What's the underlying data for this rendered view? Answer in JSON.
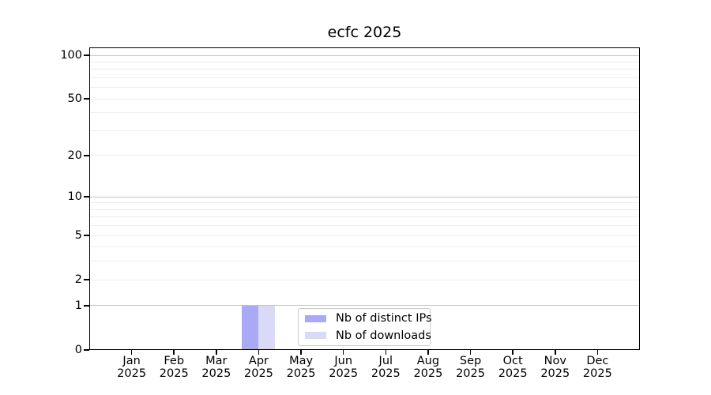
{
  "page": {
    "background": "#ffffff"
  },
  "chart_data": {
    "type": "bar",
    "title": "ecfc 2025",
    "x": {
      "categories": [
        {
          "month": "Jan",
          "year": "2025"
        },
        {
          "month": "Feb",
          "year": "2025"
        },
        {
          "month": "Mar",
          "year": "2025"
        },
        {
          "month": "Apr",
          "year": "2025"
        },
        {
          "month": "May",
          "year": "2025"
        },
        {
          "month": "Jun",
          "year": "2025"
        },
        {
          "month": "Jul",
          "year": "2025"
        },
        {
          "month": "Aug",
          "year": "2025"
        },
        {
          "month": "Sep",
          "year": "2025"
        },
        {
          "month": "Oct",
          "year": "2025"
        },
        {
          "month": "Nov",
          "year": "2025"
        },
        {
          "month": "Dec",
          "year": "2025"
        }
      ]
    },
    "y": {
      "ticks": [
        100,
        50,
        20,
        10,
        5,
        2,
        1,
        0
      ],
      "scale": "log1p",
      "ylim": [
        0,
        113
      ],
      "grid": true
    },
    "series": [
      {
        "name": "Nb of distinct IPs",
        "color": "#a9a9f5",
        "values": [
          0,
          0,
          0,
          1,
          0,
          0,
          0,
          0,
          0,
          0,
          0,
          0
        ]
      },
      {
        "name": "Nb of downloads",
        "color": "#d9d9f8",
        "values": [
          0,
          0,
          0,
          1,
          0,
          0,
          0,
          0,
          0,
          0,
          0,
          0
        ]
      }
    ],
    "legend": {
      "position": "lower-center-inside",
      "border_color": "#cccccc",
      "background": "#ffffff"
    },
    "grid": {
      "major_values": [
        1,
        10,
        100
      ],
      "minor_values": [
        2,
        3,
        4,
        5,
        6,
        7,
        8,
        9,
        20,
        30,
        40,
        50,
        60,
        70,
        80,
        90
      ],
      "major_color": "#c4c4c4",
      "minor_color": "#eeeeee"
    },
    "axis": {
      "spine_color": "#000000",
      "tick_color": "#000000",
      "text_color": "#000000"
    }
  }
}
